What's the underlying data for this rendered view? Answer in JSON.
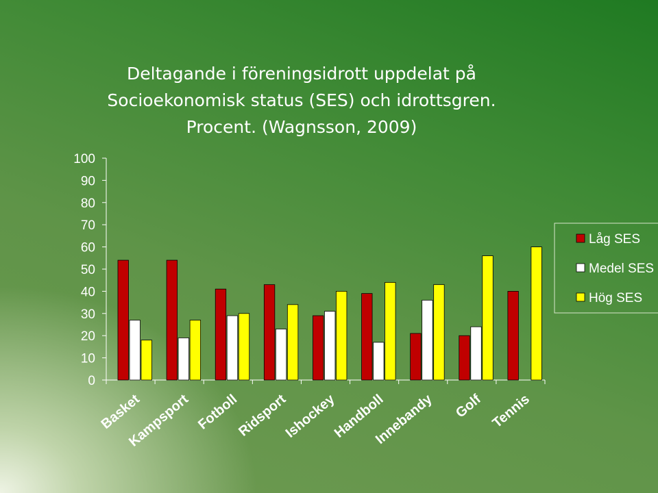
{
  "slide": {
    "title": "Deltagande i föreningsidrott uppdelat på\nSocioekonomisk status (SES) och idrottsgren.\nProcent. (Wagnsson, 2009)"
  },
  "chart_data": {
    "type": "bar",
    "categories": [
      "Basket",
      "Kampsport",
      "Fotboll",
      "Ridsport",
      "Ishockey",
      "Handboll",
      "Innebandy",
      "Golf",
      "Tennis"
    ],
    "series": [
      {
        "name": "Låg SES",
        "color": "#c00000",
        "values": [
          54,
          54,
          41,
          43,
          29,
          39,
          21,
          20,
          40
        ]
      },
      {
        "name": "Medel SES",
        "color": "#ffffff",
        "values": [
          27,
          19,
          29,
          23,
          31,
          17,
          36,
          24,
          0
        ]
      },
      {
        "name": "Hög SES",
        "color": "#ffff00",
        "values": [
          18,
          27,
          30,
          34,
          40,
          44,
          43,
          56,
          60
        ]
      }
    ],
    "y_ticks": [
      0,
      10,
      20,
      30,
      40,
      50,
      60,
      70,
      80,
      90,
      100
    ],
    "ylim": [
      0,
      100
    ],
    "xlabel": "",
    "ylabel": "",
    "legend_position": "right",
    "grid": false
  }
}
